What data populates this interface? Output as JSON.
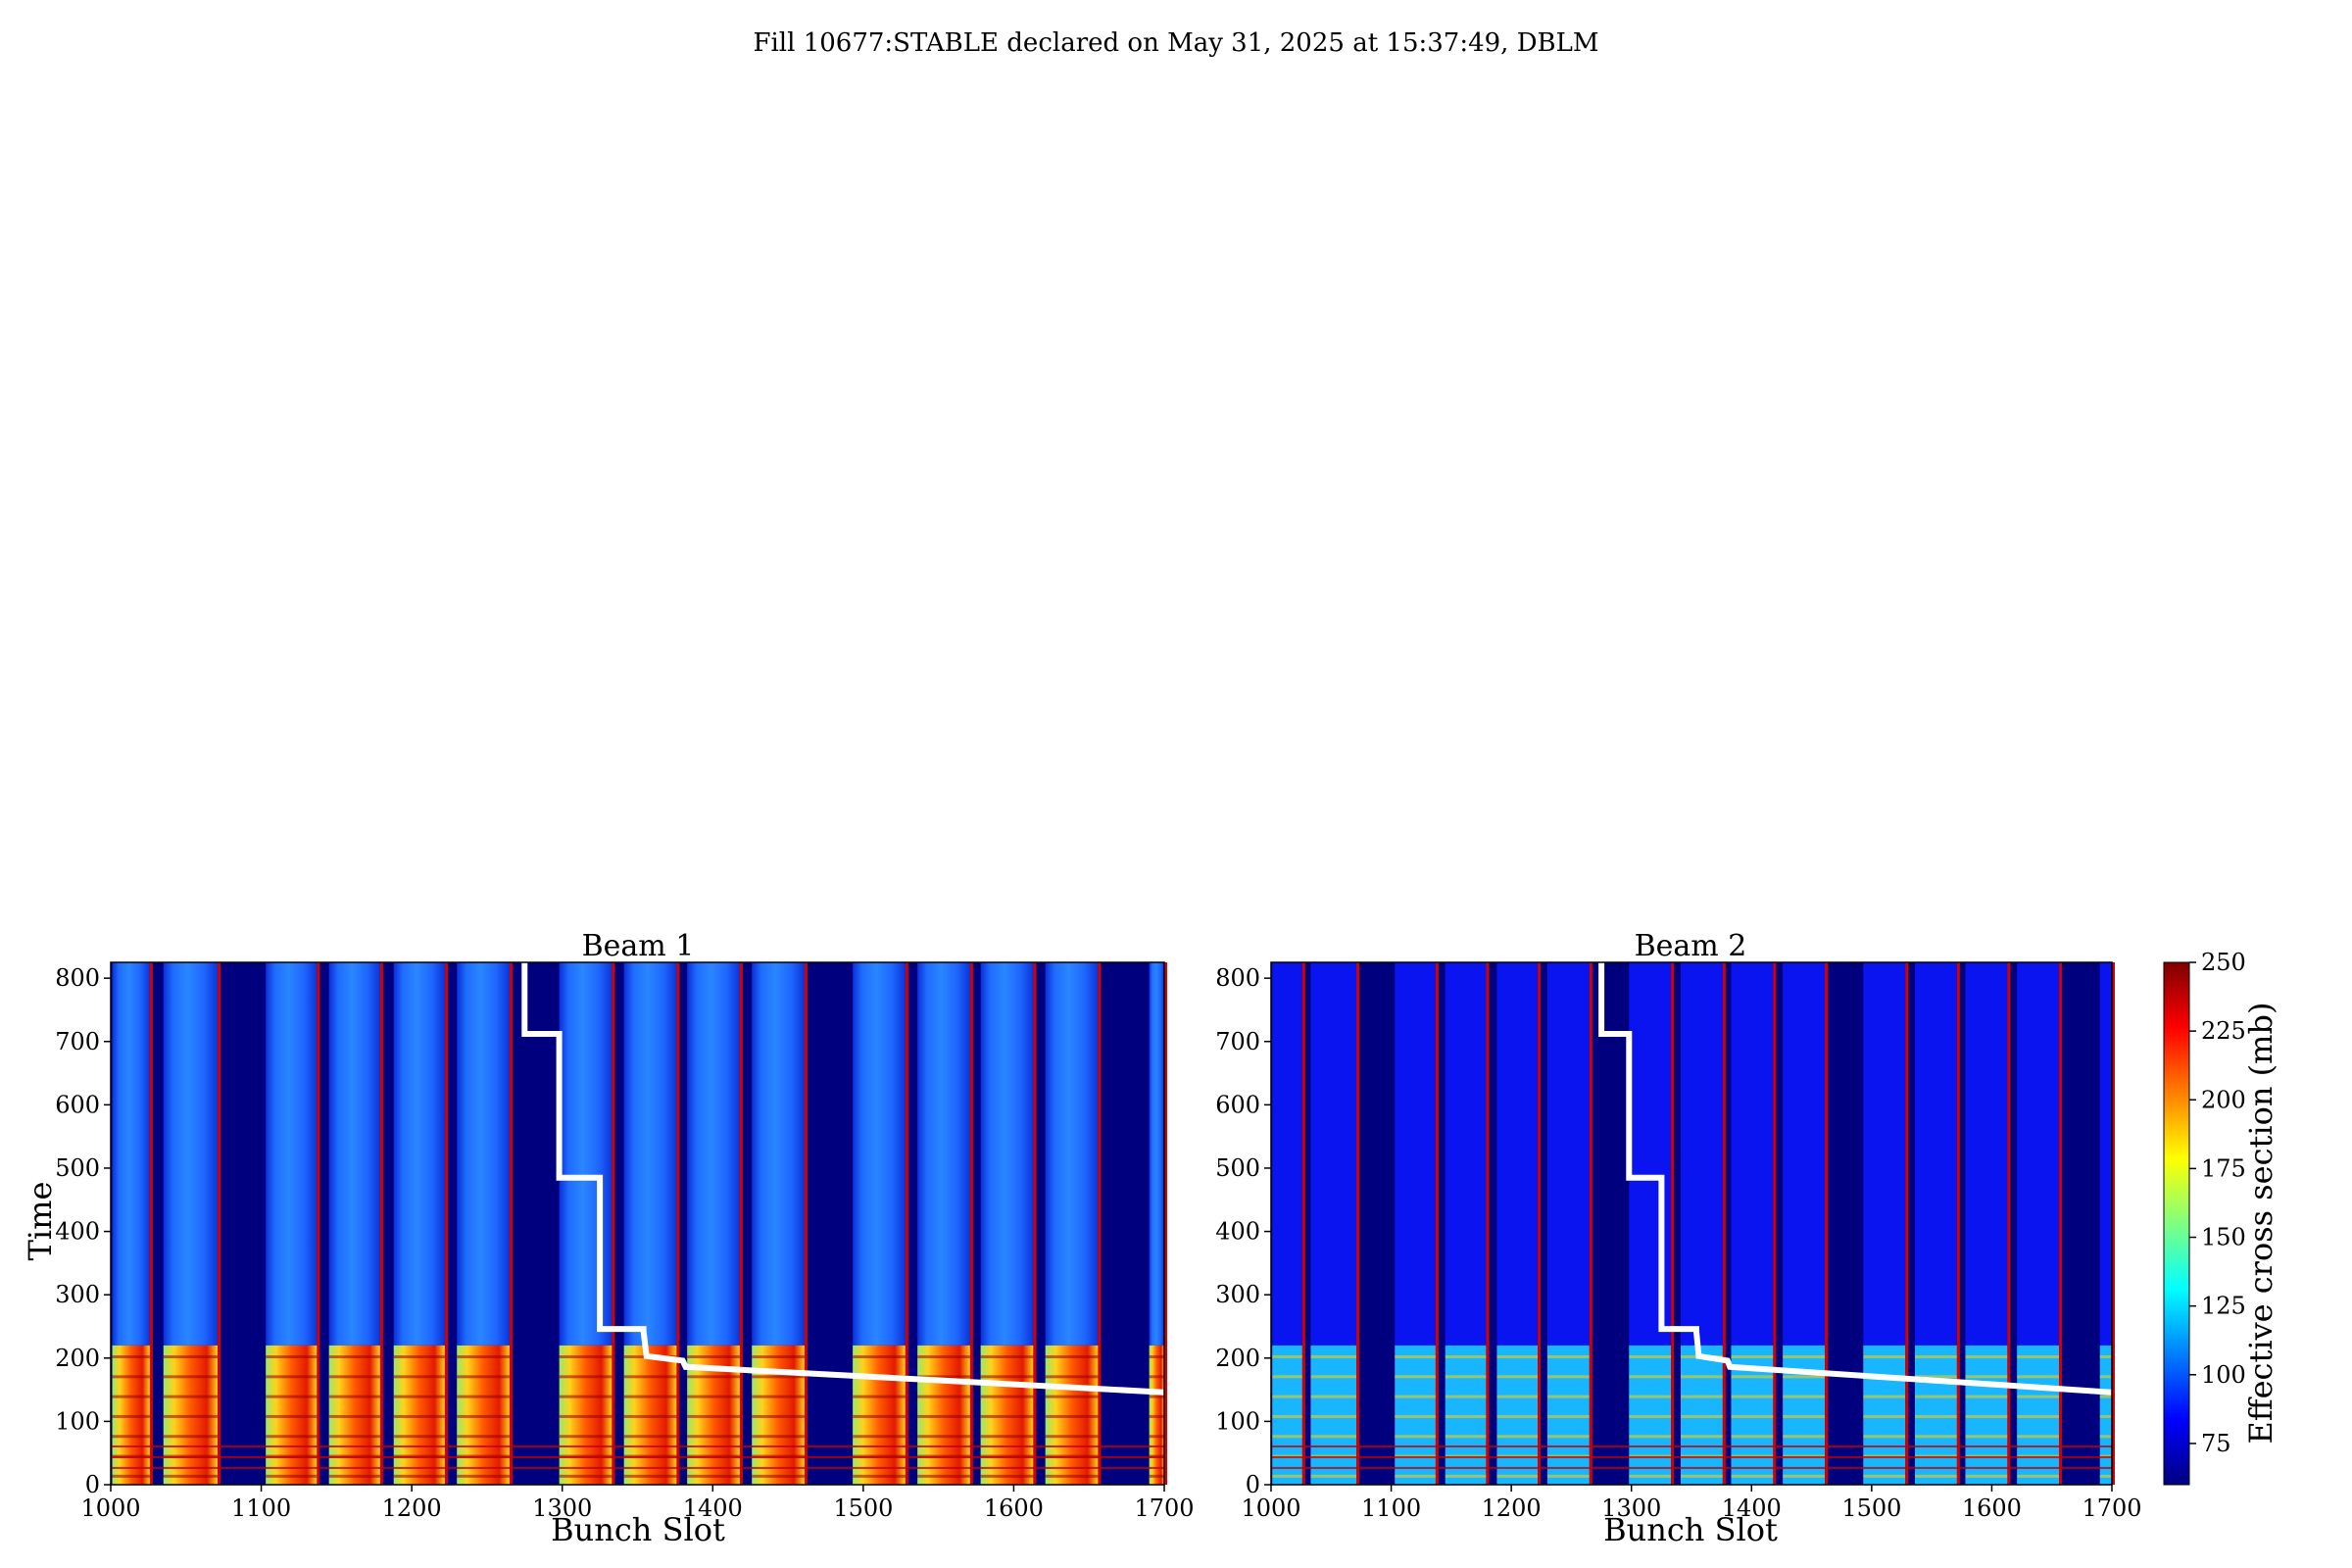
{
  "figure": {
    "title": "Fill 10677:STABLE declared on May 31, 2025 at 15:37:49, DBLM"
  },
  "colormap": {
    "name": "jet",
    "stops": [
      "#00007f",
      "#0000ff",
      "#007fff",
      "#00ffff",
      "#7fff7f",
      "#ffff00",
      "#ff7f00",
      "#ff0000",
      "#7f0000"
    ]
  },
  "chart_data": [
    {
      "type": "heatmap",
      "title": "Beam 1",
      "xlabel": "Bunch Slot",
      "ylabel": "Time",
      "xlim": [
        1000,
        1700
      ],
      "ylim": [
        0,
        825
      ],
      "xticks": [
        1000,
        1100,
        1200,
        1300,
        1400,
        1500,
        1600,
        1700
      ],
      "yticks": [
        0,
        100,
        200,
        300,
        400,
        500,
        600,
        700,
        800
      ],
      "filled_trains": [
        [
          1001,
          1026
        ],
        [
          1035,
          1071
        ],
        [
          1103,
          1137
        ],
        [
          1145,
          1179
        ],
        [
          1188,
          1222
        ],
        [
          1230,
          1265
        ],
        [
          1298,
          1333
        ],
        [
          1341,
          1376
        ],
        [
          1383,
          1418
        ],
        [
          1426,
          1461
        ],
        [
          1493,
          1528
        ],
        [
          1536,
          1571
        ],
        [
          1578,
          1613
        ],
        [
          1621,
          1656
        ],
        [
          1690,
          1700
        ]
      ],
      "overlay_line": {
        "color": "#ffffff",
        "x": [
          1275,
          1275,
          1298,
          1298,
          1298,
          1325,
          1325,
          1325,
          1354,
          1354,
          1356,
          1380,
          1382,
          1700
        ],
        "y": [
          825,
          712,
          712,
          705,
          485,
          485,
          480,
          246,
          246,
          243,
          203,
          196,
          186,
          146
        ]
      }
    },
    {
      "type": "heatmap",
      "title": "Beam 2",
      "xlabel": "Bunch Slot",
      "xlim": [
        1000,
        1700
      ],
      "ylim": [
        0,
        825
      ],
      "xticks": [
        1000,
        1100,
        1200,
        1300,
        1400,
        1500,
        1600,
        1700
      ],
      "yticks": [
        0,
        100,
        200,
        300,
        400,
        500,
        600,
        700,
        800
      ],
      "filled_trains": [
        [
          1001,
          1026
        ],
        [
          1033,
          1071
        ],
        [
          1103,
          1137
        ],
        [
          1145,
          1179
        ],
        [
          1188,
          1222
        ],
        [
          1230,
          1265
        ],
        [
          1298,
          1333
        ],
        [
          1341,
          1376
        ],
        [
          1383,
          1418
        ],
        [
          1426,
          1461
        ],
        [
          1493,
          1528
        ],
        [
          1536,
          1571
        ],
        [
          1578,
          1613
        ],
        [
          1621,
          1656
        ],
        [
          1690,
          1700
        ]
      ],
      "overlay_line": {
        "color": "#ffffff",
        "x": [
          1275,
          1275,
          1298,
          1298,
          1298,
          1325,
          1325,
          1325,
          1354,
          1354,
          1356,
          1380,
          1382,
          1700
        ],
        "y": [
          825,
          712,
          712,
          705,
          485,
          485,
          480,
          246,
          246,
          243,
          203,
          196,
          186,
          146
        ]
      }
    }
  ],
  "colorbar": {
    "label": "Effective cross section (mb)",
    "range": [
      60,
      250
    ],
    "ticks": [
      75,
      100,
      125,
      150,
      175,
      200,
      225,
      250
    ]
  }
}
